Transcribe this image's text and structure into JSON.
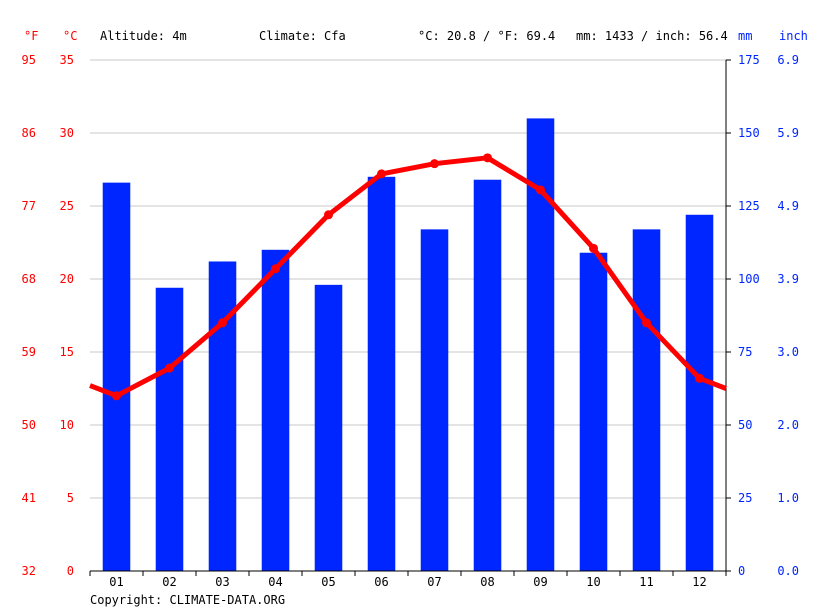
{
  "header": {
    "unit_f": "°F",
    "unit_c": "°C",
    "altitude": "Altitude: 4m",
    "climate": "Climate: Cfa",
    "temp_avg": "°C: 20.8 / °F: 69.4",
    "precip_total": "mm: 1433 / inch: 56.4",
    "unit_mm": "mm",
    "unit_inch": "inch"
  },
  "colors": {
    "temp": "#ff0000",
    "precip": "#0026ff",
    "grid": "#c8c8c8",
    "axis": "#000000"
  },
  "copyright": "Copyright: CLIMATE-DATA.ORG",
  "chart_data": {
    "type": "bar",
    "categories": [
      "01",
      "02",
      "03",
      "04",
      "05",
      "06",
      "07",
      "08",
      "09",
      "10",
      "11",
      "12"
    ],
    "series": [
      {
        "type": "bar",
        "axis": "mm",
        "values": [
          133,
          97,
          106,
          110,
          98,
          135,
          117,
          134,
          155,
          109,
          117,
          122
        ]
      },
      {
        "type": "line",
        "axis": "°C",
        "values": [
          12.0,
          13.9,
          17.0,
          20.7,
          24.4,
          27.2,
          27.9,
          28.3,
          26.1,
          22.1,
          17.0,
          13.2
        ],
        "edge_values": [
          12.7,
          12.5
        ]
      }
    ],
    "y_left_c": {
      "lim": [
        0,
        35
      ],
      "ticks": [
        "0",
        "5",
        "10",
        "15",
        "20",
        "25",
        "30",
        "35"
      ]
    },
    "y_left_f": {
      "ticks": [
        "32",
        "41",
        "50",
        "59",
        "68",
        "77",
        "86",
        "95"
      ]
    },
    "y_right_mm": {
      "lim": [
        0,
        175
      ],
      "ticks": [
        "0",
        "25",
        "50",
        "75",
        "100",
        "125",
        "150",
        "175"
      ]
    },
    "y_right_inch": {
      "ticks": [
        "0.0",
        "1.0",
        "2.0",
        "3.0",
        "3.9",
        "4.9",
        "5.9",
        "6.9"
      ]
    },
    "grid": true
  }
}
